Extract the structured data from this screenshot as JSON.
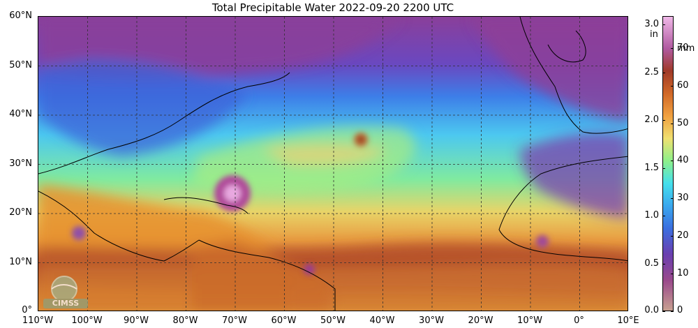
{
  "title": "Total Precipitable Water  2022-09-20 2200 UTC",
  "lat_labels": [
    "60°N",
    "50°N",
    "40°N",
    "30°N",
    "20°N",
    "10°N",
    "0°"
  ],
  "lon_labels": [
    "110°W",
    "100°W",
    "90°W",
    "80°W",
    "70°W",
    "60°W",
    "50°W",
    "40°W",
    "30°W",
    "20°W",
    "10°W",
    "0°",
    "10°E"
  ],
  "colorbar": {
    "unit_in": "in",
    "unit_mm": "mm",
    "in_ticks": [
      "3.0",
      "2.5",
      "2.0",
      "1.5",
      "1.0",
      "0.5",
      "0.0"
    ],
    "mm_ticks": [
      "70",
      "60",
      "50",
      "40",
      "30",
      "20",
      "10",
      "0"
    ],
    "in_values": [
      3.0,
      2.5,
      2.0,
      1.5,
      1.0,
      0.5,
      0.0
    ],
    "mm_values": [
      70,
      60,
      50,
      40,
      30,
      20,
      10,
      0
    ],
    "max_mm": 78.5,
    "stops": [
      {
        "mm": 0,
        "color": "#c8a090"
      },
      {
        "mm": 8,
        "color": "#9a4a8c"
      },
      {
        "mm": 15,
        "color": "#6a3fb0"
      },
      {
        "mm": 22,
        "color": "#3b6fe0"
      },
      {
        "mm": 28,
        "color": "#3aa8ee"
      },
      {
        "mm": 34,
        "color": "#45e0ec"
      },
      {
        "mm": 40,
        "color": "#8ef08a"
      },
      {
        "mm": 46,
        "color": "#f0e070"
      },
      {
        "mm": 52,
        "color": "#f0a040"
      },
      {
        "mm": 58,
        "color": "#d06828"
      },
      {
        "mm": 64,
        "color": "#a03a28"
      },
      {
        "mm": 70,
        "color": "#b05aa0"
      },
      {
        "mm": 78.5,
        "color": "#f0b8e8"
      }
    ]
  },
  "logo_text": "CIMSS"
}
